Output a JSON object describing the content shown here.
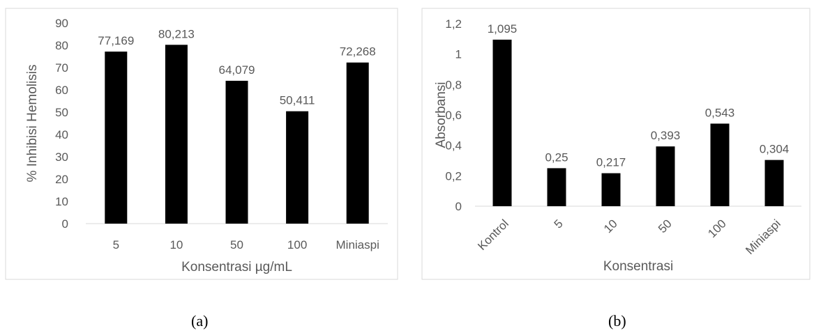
{
  "chart_data": [
    {
      "type": "bar",
      "title": "",
      "categories": [
        "5",
        "10",
        "50",
        "100",
        "Miniaspi"
      ],
      "values": [
        77.169,
        80.213,
        64.079,
        50.411,
        72.268
      ],
      "data_labels": [
        "77,169",
        "80,213",
        "64,079",
        "50,411",
        "72,268"
      ],
      "xlabel": "Konsentrasi µg/mL",
      "ylabel": "% Inhibisi Hemolisis",
      "ylim": [
        0,
        90
      ],
      "yticks": [
        0,
        10,
        20,
        30,
        40,
        50,
        60,
        70,
        80,
        90
      ],
      "ytick_labels": [
        "0",
        "10",
        "20",
        "30",
        "40",
        "50",
        "60",
        "70",
        "80",
        "90"
      ],
      "grid": false,
      "bar_color": "#000000",
      "caption": "(a)"
    },
    {
      "type": "bar",
      "title": "",
      "categories": [
        "Kontrol",
        "5",
        "10",
        "50",
        "100",
        "Miniaspi"
      ],
      "values": [
        1.095,
        0.25,
        0.217,
        0.393,
        0.543,
        0.304
      ],
      "data_labels": [
        "1,095",
        "0,25",
        "0,217",
        "0,393",
        "0,543",
        "0,304"
      ],
      "xlabel": "Konsentrasi",
      "ylabel": "Absorbansi",
      "ylim": [
        0,
        1.2
      ],
      "yticks": [
        0,
        0.2,
        0.4,
        0.6,
        0.8,
        1,
        1.2
      ],
      "ytick_labels": [
        "0",
        "0,2",
        "0,4",
        "0,6",
        "0,8",
        "1",
        "1,2"
      ],
      "grid": false,
      "bar_color": "#000000",
      "rotated_xticks": true,
      "caption": "(b)"
    }
  ]
}
